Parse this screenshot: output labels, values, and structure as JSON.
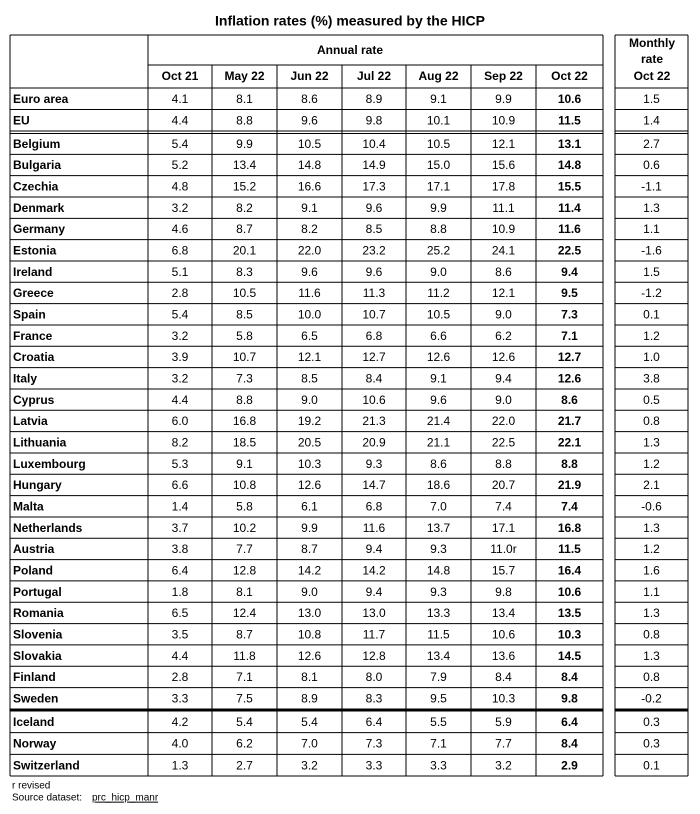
{
  "title": "Inflation rates (%) measured by the HICP",
  "header": {
    "group": "Annual rate",
    "monthly_group": [
      "Monthly",
      "rate"
    ],
    "columns": [
      "Oct 21",
      "May 22",
      "Jun 22",
      "Jul 22",
      "Aug 22",
      "Sep 22",
      "Oct 22"
    ],
    "monthly_column": "Oct 22"
  },
  "table": {
    "groups": [
      {
        "rows": [
          [
            "Euro area",
            "4.1",
            "8.1",
            "8.6",
            "8.9",
            "9.1",
            "9.9",
            "10.6",
            "1.5"
          ],
          [
            "EU",
            "4.4",
            "8.8",
            "9.6",
            "9.8",
            "10.1",
            "10.9",
            "11.5",
            "1.4"
          ]
        ]
      },
      {
        "rows": [
          [
            "Belgium",
            "5.4",
            "9.9",
            "10.5",
            "10.4",
            "10.5",
            "12.1",
            "13.1",
            "2.7"
          ],
          [
            "Bulgaria",
            "5.2",
            "13.4",
            "14.8",
            "14.9",
            "15.0",
            "15.6",
            "14.8",
            "0.6"
          ],
          [
            "Czechia",
            "4.8",
            "15.2",
            "16.6",
            "17.3",
            "17.1",
            "17.8",
            "15.5",
            "-1.1"
          ],
          [
            "Denmark",
            "3.2",
            "8.2",
            "9.1",
            "9.6",
            "9.9",
            "11.1",
            "11.4",
            "1.3"
          ],
          [
            "Germany",
            "4.6",
            "8.7",
            "8.2",
            "8.5",
            "8.8",
            "10.9",
            "11.6",
            "1.1"
          ],
          [
            "Estonia",
            "6.8",
            "20.1",
            "22.0",
            "23.2",
            "25.2",
            "24.1",
            "22.5",
            "-1.6"
          ],
          [
            "Ireland",
            "5.1",
            "8.3",
            "9.6",
            "9.6",
            "9.0",
            "8.6",
            "9.4",
            "1.5"
          ],
          [
            "Greece",
            "2.8",
            "10.5",
            "11.6",
            "11.3",
            "11.2",
            "12.1",
            "9.5",
            "-1.2"
          ],
          [
            "Spain",
            "5.4",
            "8.5",
            "10.0",
            "10.7",
            "10.5",
            "9.0",
            "7.3",
            "0.1"
          ],
          [
            "France",
            "3.2",
            "5.8",
            "6.5",
            "6.8",
            "6.6",
            "6.2",
            "7.1",
            "1.2"
          ],
          [
            "Croatia",
            "3.9",
            "10.7",
            "12.1",
            "12.7",
            "12.6",
            "12.6",
            "12.7",
            "1.0"
          ],
          [
            "Italy",
            "3.2",
            "7.3",
            "8.5",
            "8.4",
            "9.1",
            "9.4",
            "12.6",
            "3.8"
          ],
          [
            "Cyprus",
            "4.4",
            "8.8",
            "9.0",
            "10.6",
            "9.6",
            "9.0",
            "8.6",
            "0.5"
          ],
          [
            "Latvia",
            "6.0",
            "16.8",
            "19.2",
            "21.3",
            "21.4",
            "22.0",
            "21.7",
            "0.8"
          ],
          [
            "Lithuania",
            "8.2",
            "18.5",
            "20.5",
            "20.9",
            "21.1",
            "22.5",
            "22.1",
            "1.3"
          ],
          [
            "Luxembourg",
            "5.3",
            "9.1",
            "10.3",
            "9.3",
            "8.6",
            "8.8",
            "8.8",
            "1.2"
          ],
          [
            "Hungary",
            "6.6",
            "10.8",
            "12.6",
            "14.7",
            "18.6",
            "20.7",
            "21.9",
            "2.1"
          ],
          [
            "Malta",
            "1.4",
            "5.8",
            "6.1",
            "6.8",
            "7.0",
            "7.4",
            "7.4",
            "-0.6"
          ],
          [
            "Netherlands",
            "3.7",
            "10.2",
            "9.9",
            "11.6",
            "13.7",
            "17.1",
            "16.8",
            "1.3"
          ],
          [
            "Austria",
            "3.8",
            "7.7",
            "8.7",
            "9.4",
            "9.3",
            "11.0r",
            "11.5",
            "1.2"
          ],
          [
            "Poland",
            "6.4",
            "12.8",
            "14.2",
            "14.2",
            "14.8",
            "15.7",
            "16.4",
            "1.6"
          ],
          [
            "Portugal",
            "1.8",
            "8.1",
            "9.0",
            "9.4",
            "9.3",
            "9.8",
            "10.6",
            "1.1"
          ],
          [
            "Romania",
            "6.5",
            "12.4",
            "13.0",
            "13.0",
            "13.3",
            "13.4",
            "13.5",
            "1.3"
          ],
          [
            "Slovenia",
            "3.5",
            "8.7",
            "10.8",
            "11.7",
            "11.5",
            "10.6",
            "10.3",
            "0.8"
          ],
          [
            "Slovakia",
            "4.4",
            "11.8",
            "12.6",
            "12.8",
            "13.4",
            "13.6",
            "14.5",
            "1.3"
          ],
          [
            "Finland",
            "2.8",
            "7.1",
            "8.1",
            "8.0",
            "7.9",
            "8.4",
            "8.4",
            "0.8"
          ],
          [
            "Sweden",
            "3.3",
            "7.5",
            "8.9",
            "8.3",
            "9.5",
            "10.3",
            "9.8",
            "-0.2"
          ]
        ]
      },
      {
        "rows": [
          [
            "Iceland",
            "4.2",
            "5.4",
            "5.4",
            "6.4",
            "5.5",
            "5.9",
            "6.4",
            "0.3"
          ],
          [
            "Norway",
            "4.0",
            "6.2",
            "7.0",
            "7.3",
            "7.1",
            "7.7",
            "8.4",
            "0.3"
          ],
          [
            "Switzerland",
            "1.3",
            "2.7",
            "3.2",
            "3.3",
            "3.3",
            "3.2",
            "2.9",
            "0.1"
          ]
        ]
      }
    ]
  },
  "footnote": "r revised",
  "source_label": "Source dataset:",
  "source_link": "prc_hicp_manr"
}
